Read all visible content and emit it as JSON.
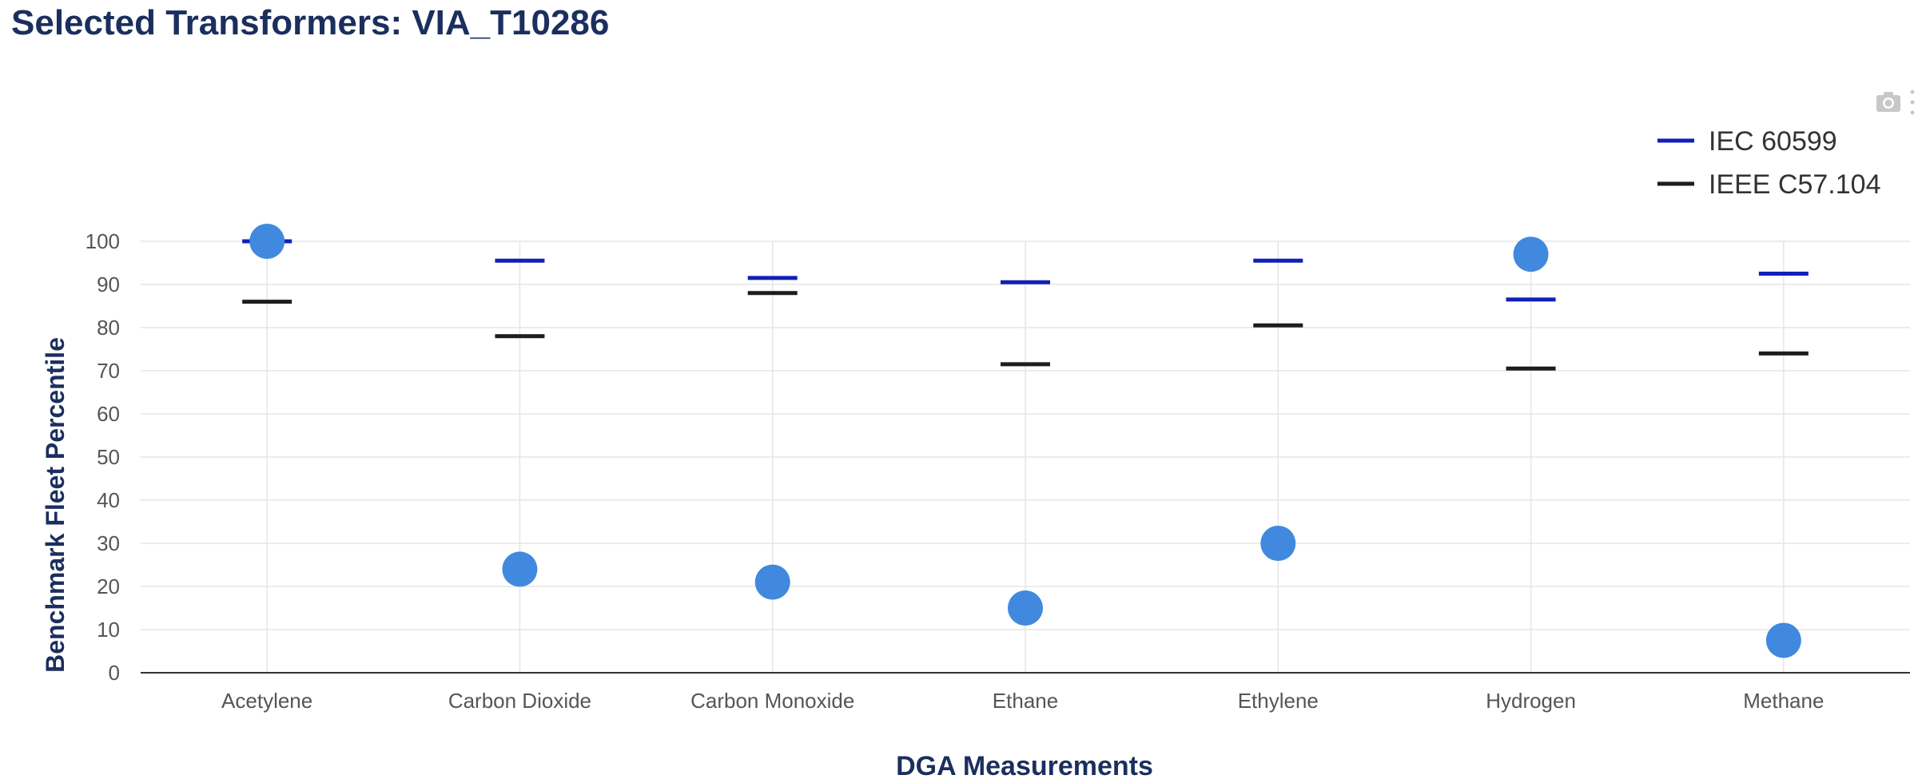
{
  "header": {
    "title": "Selected Transformers: VIA_T10286"
  },
  "toolbar": {
    "camera_icon": "camera-icon",
    "more_icon": "vertical-dots-icon"
  },
  "colors": {
    "title": "#1b2f5e",
    "measurement_marker": "#4189de",
    "iec_marker": "#1020b8",
    "ieee_marker": "#1a1f1a",
    "grid": "#e6e6e6",
    "axis": "#333333",
    "tick_text": "#555555"
  },
  "chart_data": {
    "type": "scatter",
    "title": "",
    "xlabel": "DGA Measurements",
    "ylabel": "Benchmark Fleet Percentile",
    "ylim": [
      0,
      100
    ],
    "yticks": [
      0,
      10,
      20,
      30,
      40,
      50,
      60,
      70,
      80,
      90,
      100
    ],
    "grid": true,
    "legend_position": "top-right",
    "categories": [
      "Acetylene",
      "Carbon Dioxide",
      "Carbon Monoxide",
      "Ethane",
      "Ethylene",
      "Hydrogen",
      "Methane"
    ],
    "series": [
      {
        "name": "",
        "marker": "circle",
        "values": [
          100,
          24,
          21,
          15,
          30,
          97,
          7.5
        ]
      },
      {
        "name": "IEC 60599",
        "marker": "line",
        "values": [
          100,
          95.5,
          91.5,
          90.5,
          95.5,
          86.5,
          92.5
        ]
      },
      {
        "name": "IEEE C57.104",
        "marker": "line",
        "values": [
          86,
          78,
          88,
          71.5,
          80.5,
          70.5,
          74
        ]
      }
    ]
  }
}
